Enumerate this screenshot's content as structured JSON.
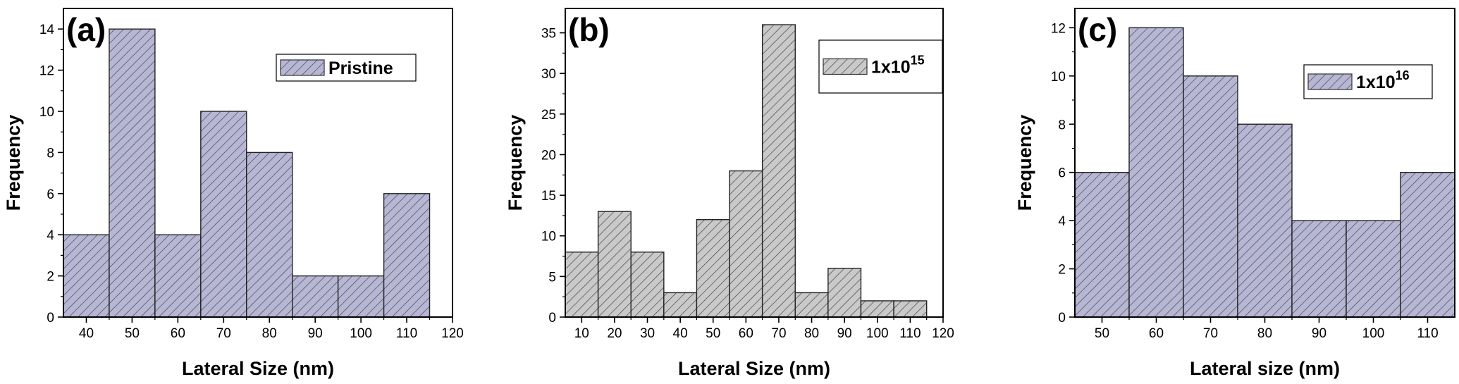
{
  "chart_data": [
    {
      "type": "bar",
      "panel_label": "(a)",
      "xlabel": "Lateral Size (nm)",
      "ylabel": "Frequency",
      "legend": "Pristine",
      "legend_sup": "",
      "legend_position": "top-right",
      "xlim": [
        35,
        120
      ],
      "ylim": [
        0,
        15
      ],
      "x_ticks": [
        40,
        50,
        60,
        70,
        80,
        90,
        100,
        110,
        120
      ],
      "y_ticks": [
        0,
        2,
        4,
        6,
        8,
        10,
        12,
        14
      ],
      "bin_width": 10,
      "x": [
        40,
        50,
        60,
        70,
        80,
        90,
        100,
        110
      ],
      "values": [
        4,
        14,
        4,
        10,
        8,
        2,
        2,
        6
      ],
      "fill_color": "#b7b7d2",
      "hatch_color": "#3b3b66"
    },
    {
      "type": "bar",
      "panel_label": "(b)",
      "xlabel": "Lateral Size (nm)",
      "ylabel": "Frequency",
      "legend": "1x10",
      "legend_sup": "15",
      "legend_position": "top-right",
      "xlim": [
        5,
        120
      ],
      "ylim": [
        0,
        38
      ],
      "x_ticks": [
        10,
        20,
        30,
        40,
        50,
        60,
        70,
        80,
        90,
        100,
        110,
        120
      ],
      "y_ticks": [
        0,
        5,
        10,
        15,
        20,
        25,
        30,
        35
      ],
      "bin_width": 10,
      "x": [
        10,
        20,
        30,
        40,
        50,
        60,
        70,
        80,
        90,
        100,
        110
      ],
      "values": [
        8,
        13,
        8,
        3,
        12,
        18,
        36,
        3,
        6,
        2,
        2
      ],
      "fill_color": "#c9c9c9",
      "hatch_color": "#3a3a3a"
    },
    {
      "type": "bar",
      "panel_label": "(c)",
      "xlabel": "Lateral size (nm)",
      "ylabel": "Frequency",
      "legend": "1x10",
      "legend_sup": "16",
      "legend_position": "top-right",
      "xlim": [
        45,
        115
      ],
      "ylim": [
        0,
        12.8
      ],
      "x_ticks": [
        50,
        60,
        70,
        80,
        90,
        100,
        110
      ],
      "y_ticks": [
        0,
        2,
        4,
        6,
        8,
        10,
        12
      ],
      "bin_width": 10,
      "x": [
        50,
        60,
        70,
        80,
        90,
        100,
        110
      ],
      "values": [
        6,
        12,
        10,
        8,
        4,
        4,
        6
      ],
      "fill_color": "#b7b7d2",
      "hatch_color": "#3b3b66"
    }
  ]
}
